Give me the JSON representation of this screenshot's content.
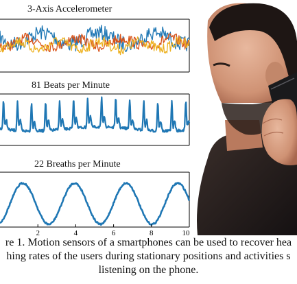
{
  "figure": {
    "panels": [
      {
        "title": "3-Axis Accelerometer"
      },
      {
        "title": "81 Beats per Minute"
      },
      {
        "title": "22 Breaths per Minute"
      }
    ],
    "x_ticks": [
      "2",
      "4",
      "6",
      "8",
      "10"
    ],
    "caption_lines": [
      "re 1. Motion sensors of a smartphones can be used to recover hea",
      "hing rates of the users during stationary positions and activities s",
      "listening on the phone."
    ]
  },
  "colors": {
    "blue": "#1f77b4",
    "red": "#d95319",
    "yellow": "#edb120",
    "skin": "#d9a184",
    "hair": "#1e1614",
    "phone": "#1a1a1c"
  },
  "chart_data": [
    {
      "type": "line",
      "title": "3-Axis Accelerometer",
      "xlim": [
        0,
        10
      ],
      "series": [
        {
          "color": "#1f77b4",
          "pattern": "noisy-oscillation"
        },
        {
          "color": "#d95319",
          "pattern": "noisy-oscillation"
        },
        {
          "color": "#edb120",
          "pattern": "noisy-oscillation"
        }
      ]
    },
    {
      "type": "line",
      "title": "81 Beats per Minute",
      "xlim": [
        0,
        10
      ],
      "beats_per_minute": 81,
      "series": [
        {
          "color": "#1f77b4"
        }
      ]
    },
    {
      "type": "line",
      "title": "22 Breaths per Minute",
      "xlim": [
        0,
        10
      ],
      "x_ticks": [
        2,
        4,
        6,
        8,
        10
      ],
      "breaths_per_minute": 22,
      "series": [
        {
          "color": "#1f77b4"
        }
      ]
    }
  ]
}
